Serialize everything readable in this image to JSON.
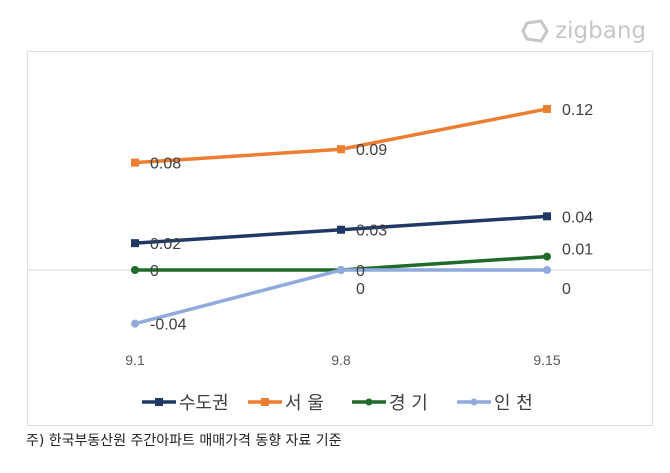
{
  "logo": "zigbang",
  "footnote": "주) 한국부동산원 주간아파트 매매가격 동향 자료 기준",
  "chart_data": {
    "type": "line",
    "categories": [
      "9.1",
      "9.8",
      "9.15"
    ],
    "ylim": [
      -0.06,
      0.14
    ],
    "grid": false,
    "legend": "bottom",
    "series": [
      {
        "name": "수도권",
        "values": [
          0.02,
          0.03,
          0.04
        ],
        "color": "#203864",
        "marker": "square",
        "labels": [
          "0.02",
          "0.03",
          "0.04"
        ]
      },
      {
        "name": "서 울",
        "values": [
          0.08,
          0.09,
          0.12
        ],
        "color": "#ED7D31",
        "marker": "square",
        "labels": [
          "0.08",
          "0.09",
          "0.12"
        ]
      },
      {
        "name": "경 기",
        "values": [
          0,
          0,
          0.01
        ],
        "color": "#1E6B2A",
        "marker": "circle",
        "labels": [
          "0",
          "0",
          "0.01"
        ]
      },
      {
        "name": "인 천",
        "values": [
          -0.04,
          0,
          0
        ],
        "color": "#8FAADC",
        "marker": "circle",
        "labels": [
          "-0.04",
          "0",
          "0"
        ]
      }
    ]
  }
}
